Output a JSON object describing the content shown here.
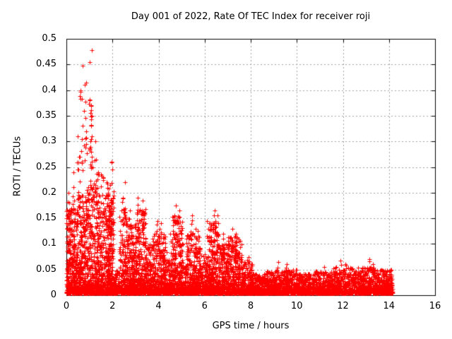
{
  "title": "Day 001 of 2022, Rate Of TEC Index for receiver roji",
  "x_axis": {
    "label": "GPS time / hours",
    "tick_labels": [
      "0",
      "2",
      "4",
      "6",
      "8",
      "10",
      "12",
      "14",
      "16"
    ],
    "min": 0,
    "max": 16
  },
  "y_axis": {
    "label": "ROTI / TECUs",
    "tick_labels": [
      "0",
      "0.05",
      "0.1",
      "0.15",
      "0.2",
      "0.25",
      "0.3",
      "0.35",
      "0.4",
      "0.45",
      "0.5"
    ],
    "min": 0,
    "max": 0.5
  },
  "colors": {
    "marker": "#ff0000",
    "grid": "#a0a0a0",
    "frame": "#000000",
    "background": "#ffffff"
  },
  "chart_data": {
    "type": "scatter",
    "marker": "plus",
    "marker_size_px": 7,
    "title": "Day 001 of 2022, Rate Of TEC Index for receiver roji",
    "xlabel": "GPS time / hours",
    "ylabel": "ROTI / TECUs",
    "xlim": [
      0,
      16
    ],
    "ylim": [
      0,
      0.5
    ],
    "grid": true,
    "grid_style": "dashed",
    "legend": "none",
    "data_start_hour": 0.0,
    "data_end_hour": 14.1,
    "peak_point": [
      1.1,
      0.478
    ],
    "bands_note": "dense scatter envelopes estimated from pixels: [t_start_hour, t_end_hour, point_count, y_max_TECU]; density concentrated near y=0",
    "bands": [
      [
        0.0,
        0.5,
        420,
        0.17
      ],
      [
        0.5,
        0.9,
        300,
        0.2
      ],
      [
        0.9,
        1.35,
        320,
        0.22
      ],
      [
        1.35,
        1.8,
        300,
        0.2
      ],
      [
        1.8,
        2.05,
        260,
        0.21
      ],
      [
        2.05,
        2.3,
        90,
        0.05
      ],
      [
        2.3,
        2.6,
        160,
        0.17
      ],
      [
        2.6,
        3.05,
        300,
        0.14
      ],
      [
        3.05,
        3.45,
        280,
        0.17
      ],
      [
        3.45,
        3.75,
        160,
        0.1
      ],
      [
        3.75,
        4.35,
        330,
        0.12
      ],
      [
        4.35,
        4.6,
        110,
        0.07
      ],
      [
        4.6,
        5.05,
        300,
        0.155
      ],
      [
        5.05,
        5.2,
        70,
        0.06
      ],
      [
        5.2,
        5.8,
        330,
        0.125
      ],
      [
        5.8,
        6.1,
        140,
        0.08
      ],
      [
        6.1,
        6.6,
        300,
        0.145
      ],
      [
        6.6,
        7.0,
        220,
        0.1
      ],
      [
        7.0,
        7.6,
        320,
        0.115
      ],
      [
        7.6,
        8.1,
        220,
        0.065
      ],
      [
        8.1,
        8.7,
        260,
        0.042
      ],
      [
        8.7,
        9.3,
        280,
        0.048
      ],
      [
        9.3,
        10.0,
        300,
        0.05
      ],
      [
        10.0,
        10.75,
        300,
        0.042
      ],
      [
        10.75,
        11.55,
        330,
        0.048
      ],
      [
        11.55,
        12.35,
        340,
        0.055
      ],
      [
        12.35,
        13.35,
        380,
        0.055
      ],
      [
        13.35,
        14.15,
        340,
        0.05
      ]
    ],
    "spikes_note": "isolated high excursions: [t_hour, y_top_TECU, point_count]",
    "spikes": [
      [
        0.08,
        0.2,
        5
      ],
      [
        0.15,
        0.16,
        5
      ],
      [
        0.3,
        0.24,
        6
      ],
      [
        0.5,
        0.31,
        5
      ],
      [
        0.55,
        0.27,
        6
      ],
      [
        0.62,
        0.4,
        5
      ],
      [
        0.7,
        0.447,
        4
      ],
      [
        0.72,
        0.33,
        5
      ],
      [
        0.8,
        0.41,
        4
      ],
      [
        0.87,
        0.32,
        6
      ],
      [
        0.87,
        0.415,
        3
      ],
      [
        1.02,
        0.455,
        3
      ],
      [
        1.02,
        0.38,
        5
      ],
      [
        1.07,
        0.37,
        4
      ],
      [
        1.1,
        0.478,
        2
      ],
      [
        1.05,
        0.355,
        6
      ],
      [
        1.05,
        0.3,
        6
      ],
      [
        1.07,
        0.28,
        4
      ],
      [
        1.14,
        0.25,
        4
      ],
      [
        1.25,
        0.3,
        3
      ],
      [
        1.3,
        0.265,
        3
      ],
      [
        1.38,
        0.24,
        4
      ],
      [
        1.5,
        0.235,
        5
      ],
      [
        1.6,
        0.23,
        5
      ],
      [
        1.75,
        0.22,
        4
      ],
      [
        1.9,
        0.215,
        5
      ],
      [
        1.97,
        0.26,
        4
      ],
      [
        2.45,
        0.19,
        5
      ],
      [
        2.55,
        0.22,
        2
      ],
      [
        2.75,
        0.165,
        4
      ],
      [
        3.1,
        0.19,
        5
      ],
      [
        3.3,
        0.185,
        4
      ],
      [
        3.95,
        0.145,
        5
      ],
      [
        4.1,
        0.14,
        4
      ],
      [
        4.5,
        0.12,
        3
      ],
      [
        4.75,
        0.175,
        5
      ],
      [
        4.9,
        0.165,
        4
      ],
      [
        5.45,
        0.155,
        4
      ],
      [
        5.6,
        0.13,
        4
      ],
      [
        6.45,
        0.165,
        5
      ],
      [
        6.55,
        0.155,
        4
      ],
      [
        6.8,
        0.12,
        3
      ],
      [
        7.2,
        0.13,
        5
      ],
      [
        7.35,
        0.12,
        4
      ],
      [
        7.9,
        0.075,
        4
      ],
      [
        9.2,
        0.065,
        3
      ],
      [
        9.55,
        0.06,
        3
      ],
      [
        11.2,
        0.055,
        3
      ],
      [
        11.9,
        0.068,
        4
      ],
      [
        12.1,
        0.06,
        3
      ],
      [
        13.15,
        0.07,
        4
      ],
      [
        13.3,
        0.06,
        3
      ]
    ]
  }
}
